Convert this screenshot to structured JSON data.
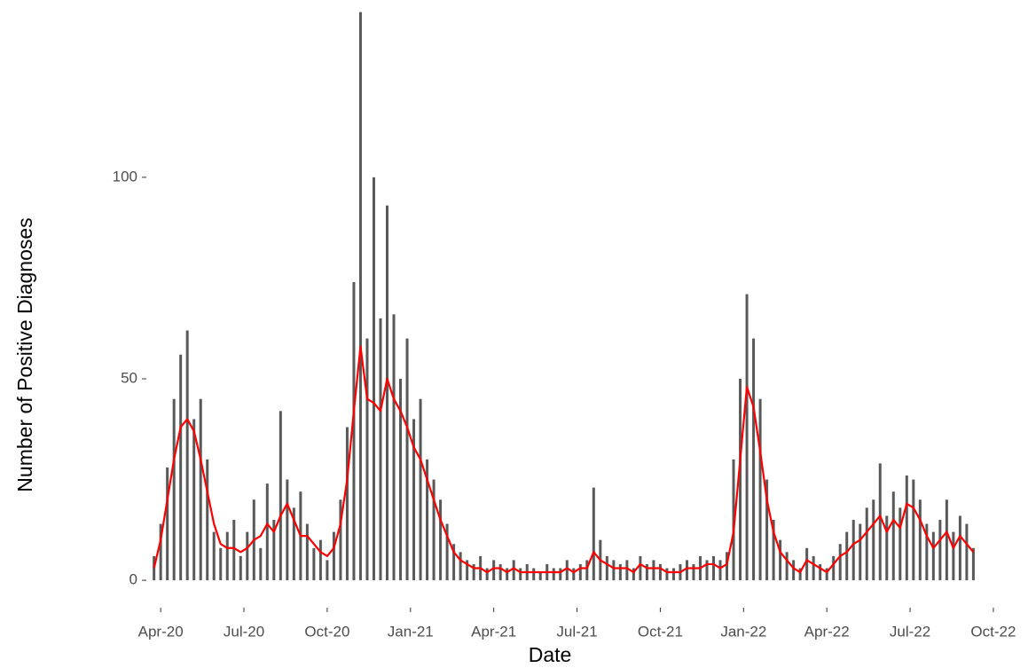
{
  "chart_data": {
    "type": "bar",
    "x_label": "Date",
    "y_label": "Number of Positive Diagnoses",
    "x": [
      2020.23,
      2020.25,
      2020.27,
      2020.29,
      2020.31,
      2020.33,
      2020.35,
      2020.37,
      2020.39,
      2020.41,
      2020.43,
      2020.45,
      2020.47,
      2020.49,
      2020.51,
      2020.53,
      2020.55,
      2020.57,
      2020.59,
      2020.61,
      2020.63,
      2020.65,
      2020.67,
      2020.69,
      2020.71,
      2020.73,
      2020.75,
      2020.77,
      2020.79,
      2020.81,
      2020.83,
      2020.85,
      2020.87,
      2020.89,
      2020.91,
      2020.93,
      2020.95,
      2020.97,
      2020.99,
      2021.01,
      2021.03,
      2021.05,
      2021.07,
      2021.09,
      2021.11,
      2021.13,
      2021.15,
      2021.17,
      2021.19,
      2021.21,
      2021.23,
      2021.25,
      2021.27,
      2021.29,
      2021.31,
      2021.33,
      2021.35,
      2021.37,
      2021.39,
      2021.41,
      2021.43,
      2021.45,
      2021.47,
      2021.49,
      2021.51,
      2021.53,
      2021.55,
      2021.57,
      2021.59,
      2021.61,
      2021.63,
      2021.65,
      2021.67,
      2021.69,
      2021.71,
      2021.73,
      2021.75,
      2021.77,
      2021.79,
      2021.81,
      2021.83,
      2021.85,
      2021.87,
      2021.89,
      2021.91,
      2021.93,
      2021.95,
      2021.97,
      2021.99,
      2022.01,
      2022.03,
      2022.05,
      2022.07,
      2022.09,
      2022.11,
      2022.13,
      2022.15,
      2022.17,
      2022.19,
      2022.21,
      2022.23,
      2022.25,
      2022.27,
      2022.29,
      2022.31,
      2022.33,
      2022.35,
      2022.37,
      2022.39,
      2022.41,
      2022.43,
      2022.45,
      2022.47,
      2022.49,
      2022.51,
      2022.53,
      2022.55,
      2022.57,
      2022.59,
      2022.61,
      2022.63,
      2022.65,
      2022.67,
      2022.69
    ],
    "series": [
      {
        "type": "bar",
        "color": "#595959",
        "values": [
          6,
          14,
          28,
          45,
          56,
          62,
          40,
          45,
          30,
          12,
          8,
          12,
          15,
          6,
          12,
          20,
          8,
          24,
          15,
          42,
          25,
          18,
          22,
          14,
          8,
          10,
          5,
          12,
          20,
          38,
          74,
          141,
          60,
          100,
          65,
          93,
          66,
          50,
          60,
          40,
          45,
          30,
          25,
          20,
          14,
          9,
          7,
          5,
          4,
          6,
          3,
          5,
          4,
          3,
          5,
          3,
          4,
          3,
          2,
          4,
          3,
          3,
          5,
          3,
          4,
          5,
          23,
          10,
          6,
          5,
          4,
          5,
          3,
          6,
          4,
          5,
          4,
          3,
          3,
          4,
          5,
          4,
          6,
          5,
          6,
          5,
          7,
          30,
          50,
          71,
          60,
          45,
          25,
          15,
          10,
          7,
          5,
          3,
          8,
          6,
          4,
          3,
          6,
          9,
          12,
          15,
          14,
          18,
          20,
          29,
          16,
          22,
          18,
          26,
          25,
          20,
          14,
          12,
          15,
          20,
          12,
          16,
          14,
          8
        ]
      },
      {
        "type": "line",
        "color": "#ff0000",
        "values": [
          3,
          10,
          20,
          30,
          38,
          40,
          37,
          30,
          22,
          14,
          9,
          8,
          8,
          7,
          8,
          10,
          11,
          14,
          12,
          16,
          19,
          15,
          11,
          11,
          9,
          7,
          6,
          8,
          14,
          25,
          42,
          58,
          45,
          44,
          42,
          50,
          45,
          42,
          38,
          33,
          30,
          25,
          20,
          15,
          11,
          7,
          5,
          4,
          3,
          3,
          2,
          3,
          3,
          2,
          3,
          2,
          2,
          2,
          2,
          2,
          2,
          2,
          3,
          2,
          3,
          3,
          7,
          5,
          4,
          3,
          3,
          3,
          2,
          4,
          3,
          3,
          3,
          2,
          2,
          2,
          3,
          3,
          3,
          4,
          4,
          3,
          4,
          12,
          30,
          48,
          43,
          32,
          20,
          12,
          7,
          5,
          3,
          2,
          5,
          4,
          3,
          2,
          4,
          6,
          7,
          9,
          10,
          12,
          14,
          16,
          12,
          15,
          13,
          19,
          18,
          15,
          11,
          8,
          10,
          12,
          8,
          11,
          9,
          7
        ]
      }
    ],
    "xlim": [
      2020.207,
      2022.854
    ],
    "xticks": [
      {
        "value": 2020.25,
        "label": "Apr-20"
      },
      {
        "value": 2020.5,
        "label": "Jul-20"
      },
      {
        "value": 2020.75,
        "label": "Oct-20"
      },
      {
        "value": 2021.0,
        "label": "Jan-21"
      },
      {
        "value": 2021.25,
        "label": "Apr-21"
      },
      {
        "value": 2021.5,
        "label": "Jul-21"
      },
      {
        "value": 2021.75,
        "label": "Oct-21"
      },
      {
        "value": 2022.0,
        "label": "Jan-22"
      },
      {
        "value": 2022.25,
        "label": "Apr-22"
      },
      {
        "value": 2022.5,
        "label": "Jul-22"
      },
      {
        "value": 2022.75,
        "label": "Oct-22"
      }
    ],
    "ylim": [
      -6.8,
      144
    ],
    "yticks": [
      0,
      50,
      100
    ],
    "grid": false
  }
}
